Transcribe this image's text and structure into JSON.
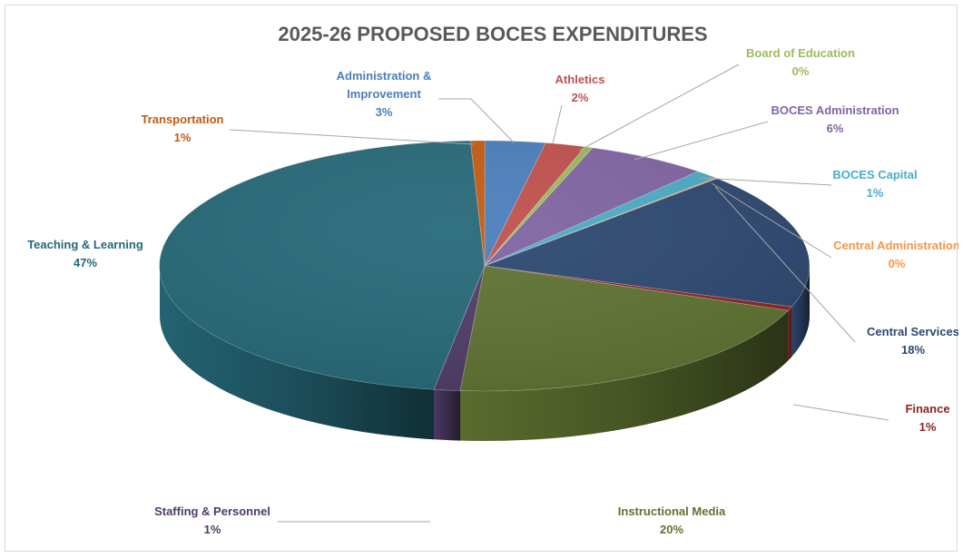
{
  "chart_data": {
    "type": "pie",
    "title": "2025-26 PROPOSED BOCES EXPENDITURES",
    "slices": [
      {
        "name": "Administration & Improvement",
        "label_lines": [
          "Administration &",
          "Improvement"
        ],
        "pct_label": "3%",
        "value": 3.0,
        "color": "#4a7ebb"
      },
      {
        "name": "Athletics",
        "label_lines": [
          "Athletics"
        ],
        "pct_label": "2%",
        "value": 2.0,
        "color": "#c0504d"
      },
      {
        "name": "Board of Education",
        "label_lines": [
          "Board of Education"
        ],
        "pct_label": "0%",
        "value": 0.4,
        "color": "#9bbb59"
      },
      {
        "name": "BOCES Administration",
        "label_lines": [
          "BOCES Administration"
        ],
        "pct_label": "6%",
        "value": 6.0,
        "color": "#8064a2"
      },
      {
        "name": "BOCES Capital",
        "label_lines": [
          "BOCES Capital"
        ],
        "pct_label": "1%",
        "value": 1.2,
        "color": "#4bacc6"
      },
      {
        "name": "Central Administration",
        "label_lines": [
          "Central Administration"
        ],
        "pct_label": "0%",
        "value": 0.1,
        "color": "#f79646"
      },
      {
        "name": "Central Services",
        "label_lines": [
          "Central Services"
        ],
        "pct_label": "18%",
        "value": 17.6,
        "color": "#2c4770"
      },
      {
        "name": "Finance",
        "label_lines": [
          "Finance"
        ],
        "pct_label": "1%",
        "value": 0.5,
        "color": "#8b2522"
      },
      {
        "name": "Instructional Media",
        "label_lines": [
          "Instructional Media"
        ],
        "pct_label": "20%",
        "value": 20.4,
        "color": "#5e7230"
      },
      {
        "name": "Staffing & Personnel",
        "label_lines": [
          "Staffing & Personnel"
        ],
        "pct_label": "1%",
        "value": 1.3,
        "color": "#4e3b66"
      },
      {
        "name": "Teaching & Learning",
        "label_lines": [
          "Teaching & Learning"
        ],
        "pct_label": "47%",
        "value": 46.8,
        "color": "#256878"
      },
      {
        "name": "Transportation",
        "label_lines": [
          "Transportation"
        ],
        "pct_label": "1%",
        "value": 0.7,
        "color": "#c55a11"
      }
    ],
    "label_colors": {
      "Administration & Improvement": "#4a7ebb",
      "Athletics": "#c0504d",
      "Board of Education": "#9bbb59",
      "BOCES Administration": "#8064a2",
      "BOCES Capital": "#4bacc6",
      "Central Administration": "#f79646",
      "Central Services": "#2c4770",
      "Finance": "#8b2522",
      "Instructional Media": "#5e7230",
      "Staffing & Personnel": "#4e3b66",
      "Teaching & Learning": "#256878",
      "Transportation": "#c55a11"
    }
  }
}
